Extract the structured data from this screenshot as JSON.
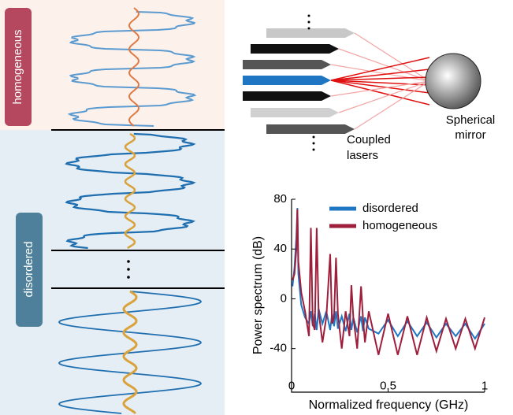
{
  "chart_data": {
    "type": "line",
    "xlabel": "Normalized frequency (GHz)",
    "ylabel": "Power spectrum (dB)",
    "x": [
      0.005,
      0.015,
      0.025,
      0.03,
      0.035,
      0.05,
      0.07,
      0.09,
      0.1,
      0.11,
      0.12,
      0.13,
      0.14,
      0.16,
      0.18,
      0.2,
      0.21,
      0.22,
      0.23,
      0.24,
      0.26,
      0.28,
      0.3,
      0.31,
      0.32,
      0.34,
      0.36,
      0.37,
      0.38,
      0.4,
      0.45,
      0.5,
      0.55,
      0.6,
      0.65,
      0.7,
      0.75,
      0.8,
      0.85,
      0.9,
      0.95,
      1.0
    ],
    "series": [
      {
        "name": "disordered",
        "color": "#1f77c4",
        "values": [
          10,
          25,
          50,
          73,
          20,
          -5,
          -15,
          -20,
          -10,
          -22,
          -12,
          -25,
          -8,
          -20,
          -10,
          -25,
          -12,
          -22,
          -10,
          -24,
          -14,
          -26,
          -12,
          -25,
          -15,
          -27,
          -14,
          -26,
          -15,
          -24,
          -28,
          -17,
          -30,
          -18,
          -30,
          -19,
          -31,
          -20,
          -30,
          -20,
          -32,
          -20
        ]
      },
      {
        "name": "homogeneous",
        "color": "#9e1f3c",
        "values": [
          15,
          20,
          40,
          72,
          30,
          5,
          -10,
          -30,
          57,
          -20,
          -25,
          57,
          -10,
          -35,
          -15,
          36,
          -20,
          -15,
          33,
          -12,
          -40,
          -10,
          -30,
          11,
          -15,
          -40,
          10,
          -15,
          -35,
          -10,
          -45,
          -12,
          -45,
          -14,
          -45,
          -15,
          -42,
          -16,
          -40,
          -16,
          -40,
          -15
        ]
      }
    ],
    "xlim": [
      0,
      1
    ],
    "xticks": [
      0,
      0.5,
      1
    ],
    "ylim": [
      -75,
      80
    ],
    "yticks": [
      -40,
      0,
      40,
      80
    ],
    "legend": "top-right"
  },
  "panels": {
    "regions": [
      "homogeneous",
      "disordered"
    ],
    "coupled_lasers": [
      "Coupled",
      "lasers"
    ],
    "spherical_mirror": [
      "Spherical",
      "mirror"
    ]
  }
}
